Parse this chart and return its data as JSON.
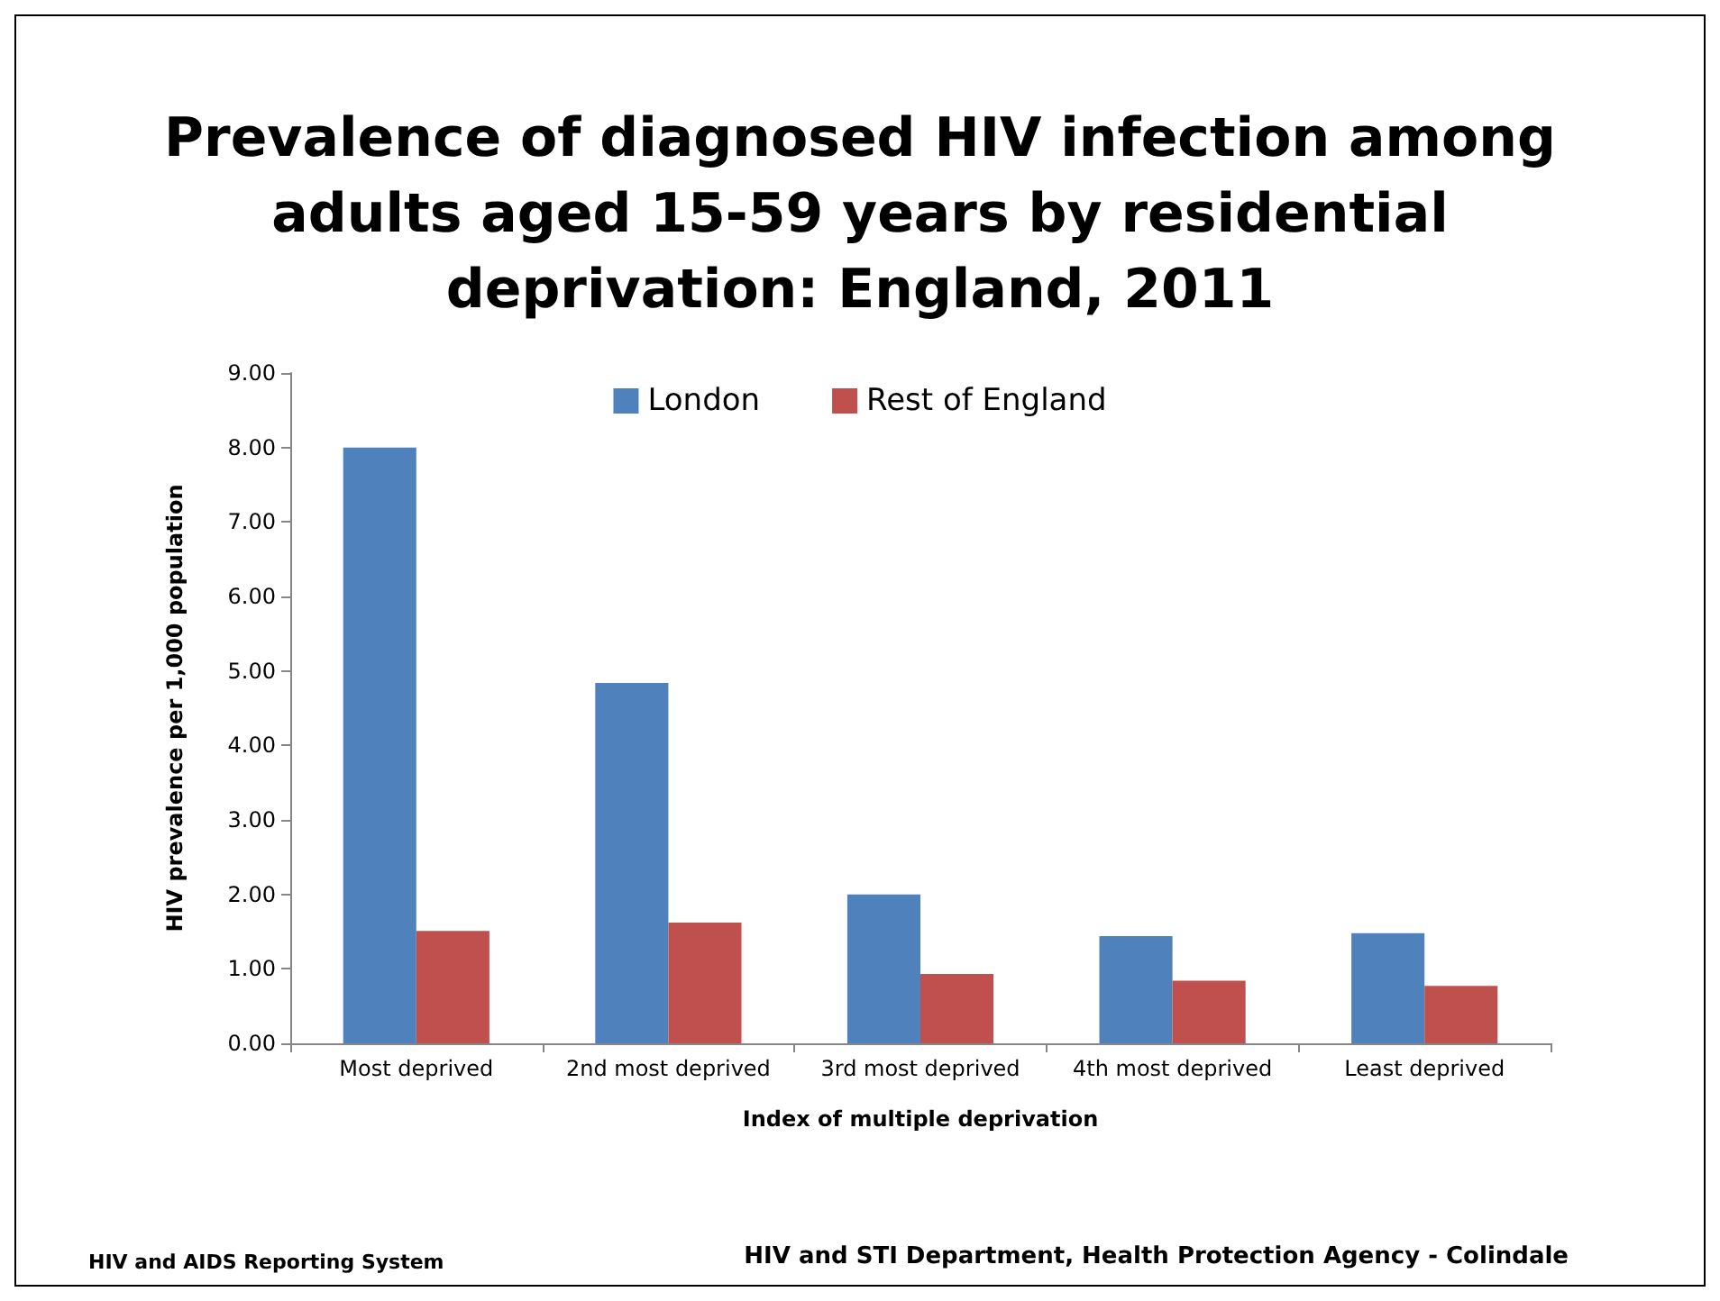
{
  "chart_data": {
    "type": "bar",
    "title": "Prevalence of diagnosed HIV infection among\nadults aged 15-59 years by residential\ndeprivation: England, 2011",
    "xlabel": "Index of multiple deprivation",
    "ylabel": "HIV prevalence per 1,000 population",
    "categories": [
      "Most deprived",
      "2nd most deprived",
      "3rd most deprived",
      "4th most deprived",
      "Least deprived"
    ],
    "series": [
      {
        "name": "London",
        "color": "#4f81bd",
        "values": [
          8.0,
          4.84,
          2.0,
          1.44,
          1.48
        ]
      },
      {
        "name": "Rest of England",
        "color": "#c0504d",
        "values": [
          1.51,
          1.62,
          0.93,
          0.84,
          0.77
        ]
      }
    ],
    "ylim": [
      0,
      9
    ],
    "yticks": [
      {
        "value": 0,
        "label": "0.00"
      },
      {
        "value": 1,
        "label": "1.00"
      },
      {
        "value": 2,
        "label": "2.00"
      },
      {
        "value": 3,
        "label": "3.00"
      },
      {
        "value": 4,
        "label": "4.00"
      },
      {
        "value": 5,
        "label": "5.00"
      },
      {
        "value": 6,
        "label": "6.00"
      },
      {
        "value": 7,
        "label": "7.00"
      },
      {
        "value": 8,
        "label": "8.00"
      },
      {
        "value": 9,
        "label": "9.00"
      }
    ],
    "grid": false,
    "legend": "top",
    "annotations": [
      "HIV and AIDS Reporting System",
      "HIV and STI Department, Health Protection Agency - Colindale"
    ]
  }
}
